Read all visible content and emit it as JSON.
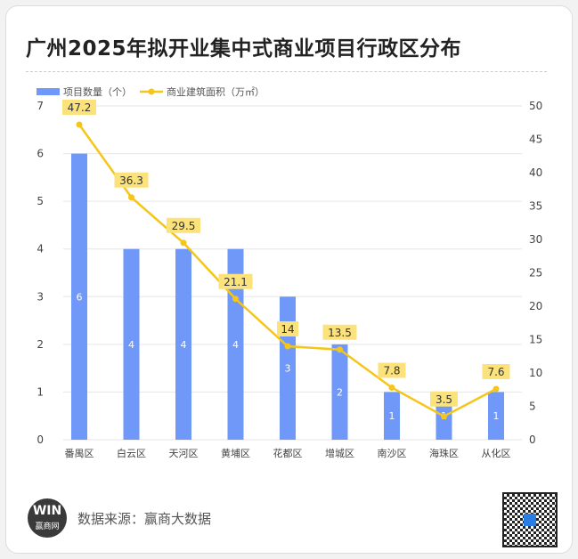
{
  "title": "广州2025年拟开业集中式商业项目行政区分布",
  "footer": {
    "source": "数据来源：赢商大数据",
    "logo_text": "WIN",
    "logo_sub": "赢商网"
  },
  "colors": {
    "bar": "#6f98f8",
    "line": "#f5c518",
    "label_bg": "#fbe27a"
  },
  "chart_data": {
    "type": "bar+line",
    "categories": [
      "番禺区",
      "白云区",
      "天河区",
      "黄埔区",
      "花都区",
      "增城区",
      "南沙区",
      "海珠区",
      "从化区"
    ],
    "series": [
      {
        "name": "项目数量（个）",
        "type": "bar",
        "axis": "left",
        "values": [
          6,
          4,
          4,
          4,
          3,
          2,
          1,
          1,
          1
        ]
      },
      {
        "name": "商业建筑面积（万㎡）",
        "type": "line",
        "axis": "right",
        "values": [
          47.2,
          36.3,
          29.5,
          21.1,
          14,
          13.5,
          7.8,
          3.5,
          7.6
        ]
      }
    ],
    "y_left": {
      "range": [
        0,
        7
      ],
      "ticks": [
        0,
        1,
        2,
        3,
        4,
        5,
        6,
        7
      ]
    },
    "y_right": {
      "range": [
        0,
        50
      ],
      "ticks": [
        0,
        5,
        10,
        15,
        20,
        25,
        30,
        35,
        40,
        45,
        50
      ]
    },
    "legend": "top-left",
    "grid": true
  }
}
